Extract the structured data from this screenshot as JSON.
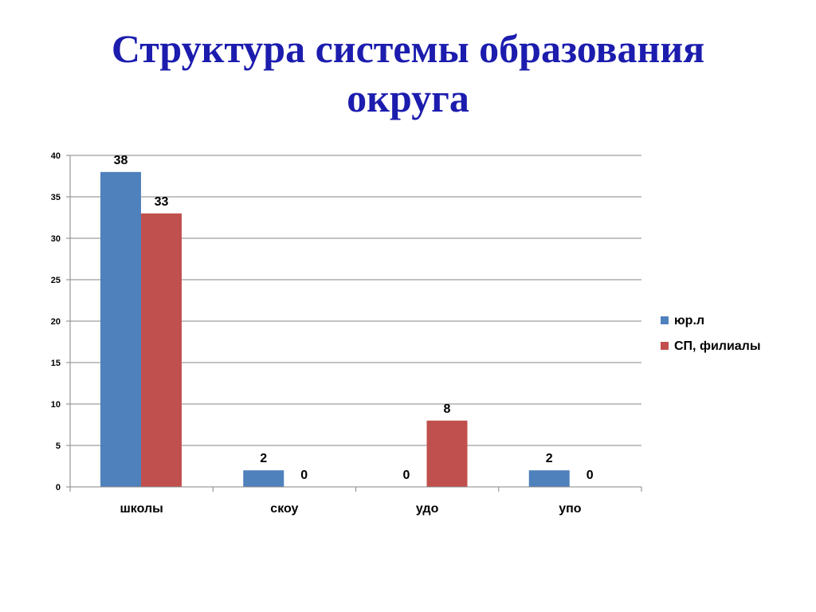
{
  "slide": {
    "title_line1": "Структура системы образования",
    "title_line2": "округа"
  },
  "chart_data": {
    "type": "bar",
    "categories": [
      "школы",
      "скоу",
      "удо",
      "упо"
    ],
    "series": [
      {
        "name": "юр.л",
        "values": [
          38,
          2,
          0,
          2
        ],
        "color": "#4f81bd"
      },
      {
        "name": "СП, филиалы",
        "values": [
          33,
          0,
          8,
          0
        ],
        "color": "#c0504d"
      }
    ],
    "ylim": [
      0,
      40
    ],
    "yticks": [
      0,
      5,
      10,
      15,
      20,
      25,
      30,
      35,
      40
    ],
    "grid": true,
    "legend": "right",
    "data_labels": true
  }
}
